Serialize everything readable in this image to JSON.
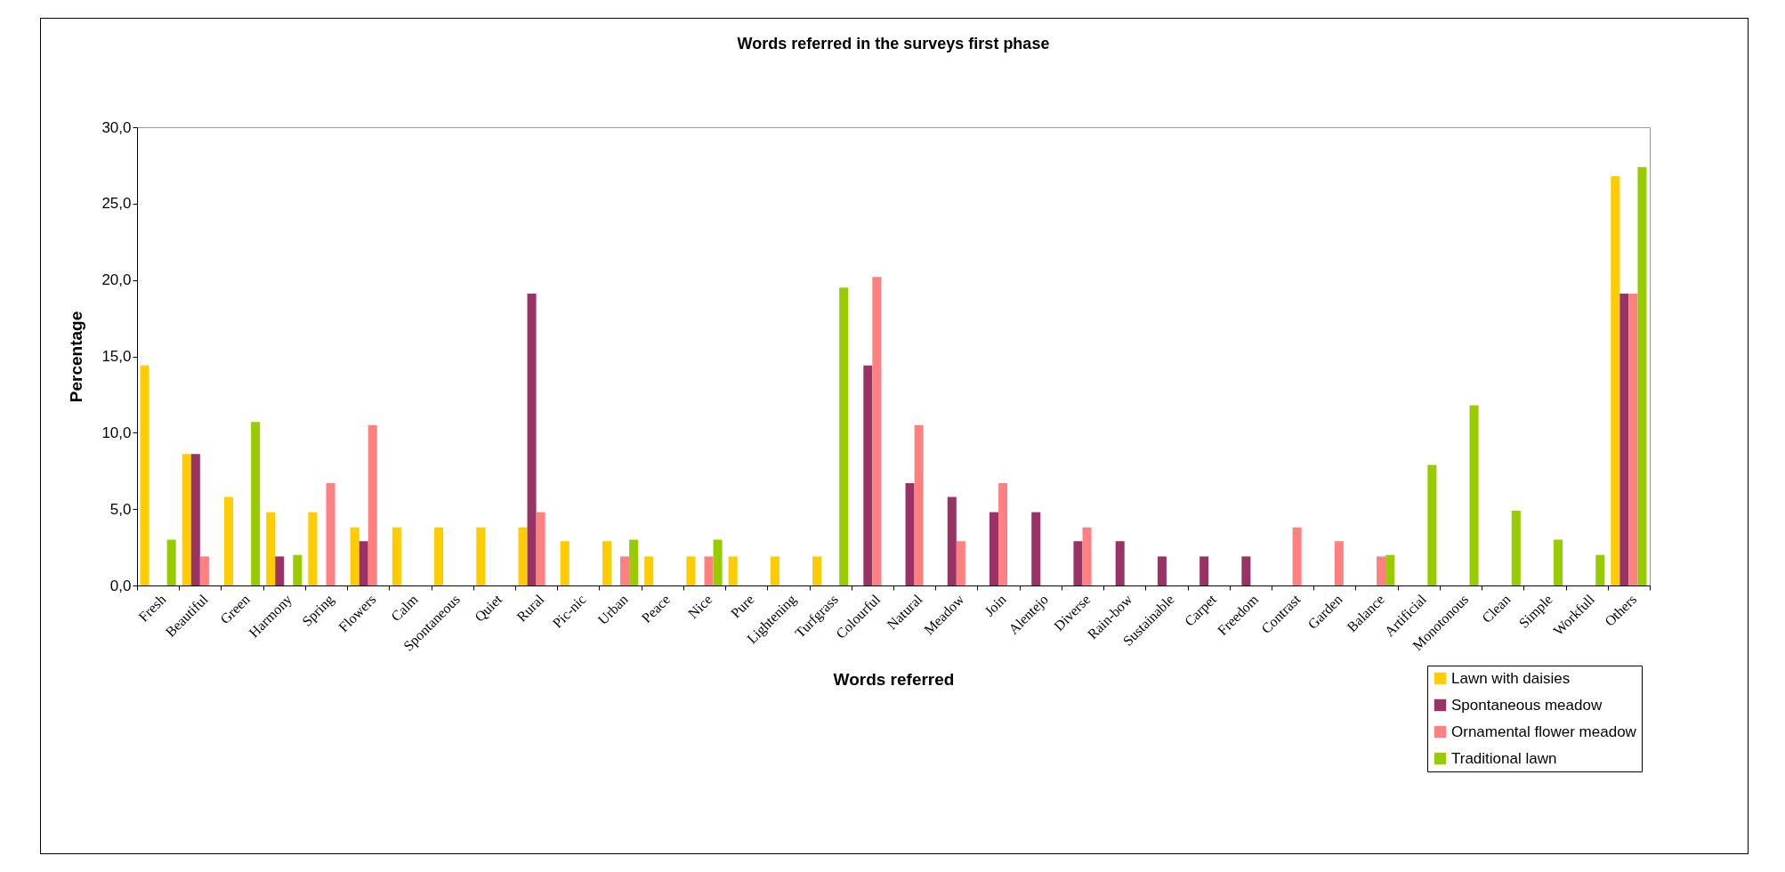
{
  "chart_data": {
    "type": "bar",
    "title": "Words referred in the surveys first phase",
    "xlabel": "Words referred",
    "ylabel": "Percentage",
    "categories": [
      "Fresh",
      "Beautiful",
      "Green",
      "Harmony",
      "Spring",
      "Flowers",
      "Calm",
      "Spontaneous",
      "Quiet",
      "Rural",
      "Pic-nic",
      "Urban",
      "Peace",
      "Nice",
      "Pure",
      "Lightening",
      "Turfgrass",
      "Colourful",
      "Natural",
      "Meadow",
      "Join",
      "Alentejo",
      "Diverse",
      "Rain-bow",
      "Sustainable",
      "Carpet",
      "Freedom",
      "Contrast",
      "Garden",
      "Balance",
      "Artificial",
      "Monotonous",
      "Clean",
      "Simple",
      "Workfull",
      "Others"
    ],
    "series": [
      {
        "name": "Lawn with daisies",
        "color": "#ffcc00",
        "values": [
          14.4,
          8.6,
          5.8,
          4.8,
          4.8,
          3.8,
          3.8,
          3.8,
          3.8,
          3.8,
          2.9,
          2.9,
          1.9,
          1.9,
          1.9,
          1.9,
          1.9,
          null,
          null,
          null,
          null,
          null,
          null,
          null,
          null,
          null,
          null,
          null,
          null,
          null,
          null,
          null,
          null,
          null,
          null,
          26.8
        ]
      },
      {
        "name": "Spontaneous meadow",
        "color": "#993366",
        "values": [
          null,
          8.6,
          null,
          1.9,
          null,
          2.9,
          null,
          null,
          null,
          19.1,
          null,
          null,
          null,
          null,
          null,
          null,
          null,
          14.4,
          6.7,
          5.8,
          4.8,
          4.8,
          2.9,
          2.9,
          1.9,
          1.9,
          1.9,
          null,
          null,
          null,
          null,
          null,
          null,
          null,
          null,
          19.1
        ]
      },
      {
        "name": "Ornamental flower meadow",
        "color": "#ff8080",
        "values": [
          null,
          1.9,
          null,
          null,
          6.7,
          10.5,
          null,
          null,
          null,
          4.8,
          null,
          1.9,
          null,
          1.9,
          null,
          null,
          null,
          20.2,
          10.5,
          2.9,
          6.7,
          null,
          3.8,
          null,
          null,
          null,
          null,
          3.8,
          2.9,
          1.9,
          null,
          null,
          null,
          null,
          null,
          19.1
        ]
      },
      {
        "name": "Traditional lawn",
        "color": "#99cc00",
        "values": [
          3.0,
          null,
          10.7,
          2.0,
          null,
          null,
          null,
          null,
          null,
          null,
          null,
          3.0,
          null,
          3.0,
          null,
          null,
          19.5,
          null,
          null,
          null,
          null,
          null,
          null,
          null,
          null,
          null,
          null,
          null,
          null,
          2.0,
          7.9,
          11.8,
          4.9,
          3.0,
          2.0,
          27.4
        ]
      }
    ],
    "ylim": [
      0,
      30
    ],
    "yticks": [
      {
        "value": 0,
        "label": "0,0"
      },
      {
        "value": 5,
        "label": "5,0"
      },
      {
        "value": 10,
        "label": "10,0"
      },
      {
        "value": 15,
        "label": "15,0"
      },
      {
        "value": 20,
        "label": "20,0"
      },
      {
        "value": 25,
        "label": "25,0"
      },
      {
        "value": 30,
        "label": "30,0"
      }
    ],
    "grid": false,
    "legend": "bottom right"
  }
}
